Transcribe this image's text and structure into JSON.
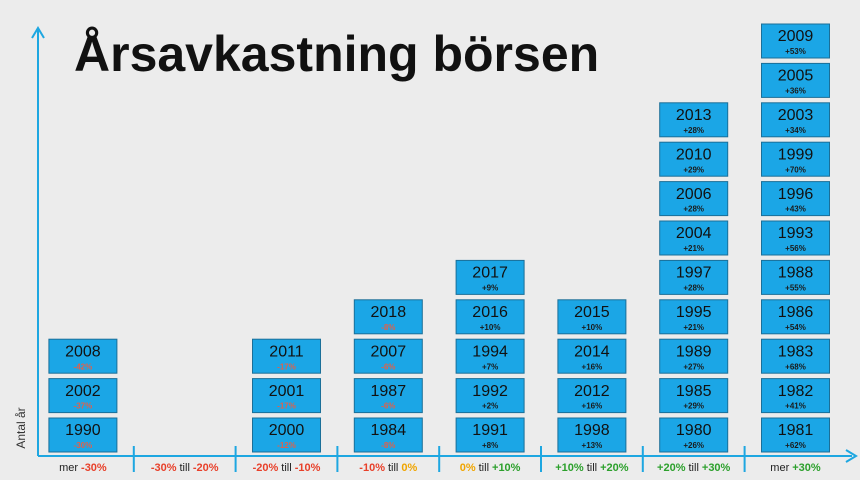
{
  "title": "Årsavkastning börsen",
  "y_axis_label": "Antal år",
  "colors": {
    "background": "#ececec",
    "axis": "#1ea7e1",
    "block": "#1ba6e6",
    "block_border": "#1b6f98",
    "negative": "#e0614a",
    "positive": "#1b1b1b"
  },
  "columns": [
    {
      "label": [
        {
          "text": "mer",
          "color": "#222222"
        },
        {
          "text": "-30%",
          "color": "#e8402a"
        }
      ],
      "blocks": [
        {
          "year": "1990",
          "return": "-30%"
        },
        {
          "year": "2002",
          "return": "-37%"
        },
        {
          "year": "2008",
          "return": "-42%"
        }
      ]
    },
    {
      "label": [
        {
          "text": "-30%",
          "color": "#e8402a"
        },
        {
          "text": "till",
          "color": "#222222"
        },
        {
          "text": "-20%",
          "color": "#e8402a"
        }
      ],
      "blocks": []
    },
    {
      "label": [
        {
          "text": "-20%",
          "color": "#e8402a"
        },
        {
          "text": "till",
          "color": "#222222"
        },
        {
          "text": "-10%",
          "color": "#e8402a"
        }
      ],
      "blocks": [
        {
          "year": "2000",
          "return": "-12%"
        },
        {
          "year": "2001",
          "return": "-17%"
        },
        {
          "year": "2011",
          "return": "-17%"
        }
      ]
    },
    {
      "label": [
        {
          "text": "-10%",
          "color": "#e8402a"
        },
        {
          "text": "till",
          "color": "#222222"
        },
        {
          "text": "0%",
          "color": "#f0a500"
        }
      ],
      "blocks": [
        {
          "year": "1984",
          "return": "-8%"
        },
        {
          "year": "1987",
          "return": "-6%"
        },
        {
          "year": "2007",
          "return": "-6%"
        },
        {
          "year": "2018",
          "return": "-8%"
        }
      ]
    },
    {
      "label": [
        {
          "text": "0%",
          "color": "#f0a500"
        },
        {
          "text": "till",
          "color": "#222222"
        },
        {
          "text": "+10%",
          "color": "#2ca02c"
        }
      ],
      "blocks": [
        {
          "year": "1991",
          "return": "+8%"
        },
        {
          "year": "1992",
          "return": "+2%"
        },
        {
          "year": "1994",
          "return": "+7%"
        },
        {
          "year": "2016",
          "return": "+10%"
        },
        {
          "year": "2017",
          "return": "+9%"
        }
      ]
    },
    {
      "label": [
        {
          "text": "+10%",
          "color": "#2ca02c"
        },
        {
          "text": "till",
          "color": "#222222"
        },
        {
          "text": "+20%",
          "color": "#2ca02c"
        }
      ],
      "blocks": [
        {
          "year": "1998",
          "return": "+13%"
        },
        {
          "year": "2012",
          "return": "+16%"
        },
        {
          "year": "2014",
          "return": "+16%"
        },
        {
          "year": "2015",
          "return": "+10%"
        }
      ]
    },
    {
      "label": [
        {
          "text": "+20%",
          "color": "#2ca02c"
        },
        {
          "text": "till",
          "color": "#222222"
        },
        {
          "text": "+30%",
          "color": "#2ca02c"
        }
      ],
      "blocks": [
        {
          "year": "1980",
          "return": "+26%"
        },
        {
          "year": "1985",
          "return": "+29%"
        },
        {
          "year": "1989",
          "return": "+27%"
        },
        {
          "year": "1995",
          "return": "+21%"
        },
        {
          "year": "1997",
          "return": "+28%"
        },
        {
          "year": "2004",
          "return": "+21%"
        },
        {
          "year": "2006",
          "return": "+28%"
        },
        {
          "year": "2010",
          "return": "+29%"
        },
        {
          "year": "2013",
          "return": "+28%"
        }
      ]
    },
    {
      "label": [
        {
          "text": "mer",
          "color": "#222222"
        },
        {
          "text": "+30%",
          "color": "#2ca02c"
        }
      ],
      "blocks": [
        {
          "year": "1981",
          "return": "+62%"
        },
        {
          "year": "1982",
          "return": "+41%"
        },
        {
          "year": "1983",
          "return": "+68%"
        },
        {
          "year": "1986",
          "return": "+54%"
        },
        {
          "year": "1988",
          "return": "+55%"
        },
        {
          "year": "1993",
          "return": "+56%"
        },
        {
          "year": "1996",
          "return": "+43%"
        },
        {
          "year": "1999",
          "return": "+70%"
        },
        {
          "year": "2003",
          "return": "+34%"
        },
        {
          "year": "2005",
          "return": "+36%"
        },
        {
          "year": "2009",
          "return": "+53%"
        }
      ]
    }
  ]
}
